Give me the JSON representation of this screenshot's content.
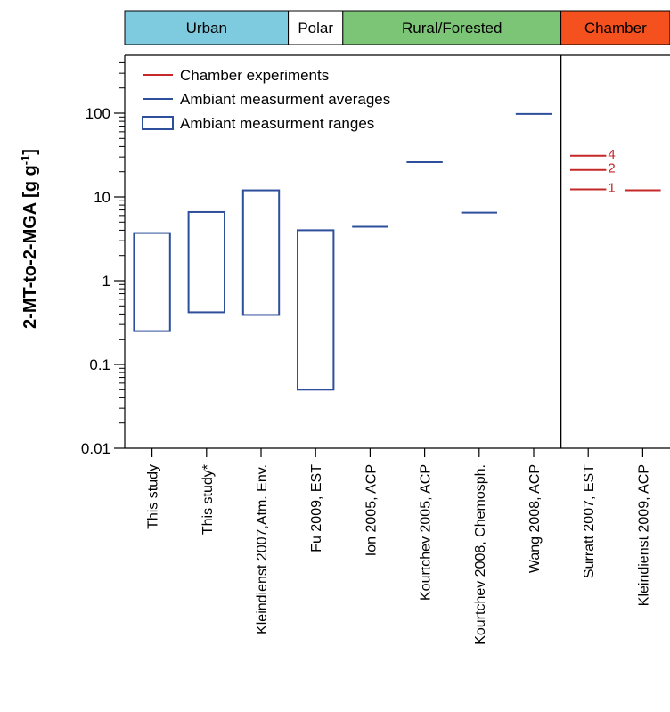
{
  "chart_data": {
    "type": "range",
    "ylabel": "2-MT-to-2-MGA [g g",
    "ylabel_sup": "-1",
    "ylabel_close": "]",
    "yscale": "log",
    "ylim": [
      0.01,
      500
    ],
    "yticks": [
      {
        "value": 0.01,
        "label": "0.01"
      },
      {
        "value": 0.1,
        "label": "0.1"
      },
      {
        "value": 1,
        "label": "1"
      },
      {
        "value": 10,
        "label": "10"
      },
      {
        "value": 100,
        "label": "100"
      }
    ],
    "categories": [
      "This study",
      "This study*",
      "Kleindienst 2007,Atm. Env.",
      "Fu 2009, EST",
      "Ion 2005, ACP",
      "Kourtchev 2005, ACP",
      "Kourtchev 2008, Chemosph.",
      "Wang 2008, ACP",
      "Surratt 2007, EST",
      "Kleindienst 2009, ACP"
    ],
    "environments": [
      {
        "label": "Urban",
        "color": "#7ecbdf",
        "from": 0,
        "to": 3
      },
      {
        "label": "Polar",
        "color": "#ffffff",
        "from": 3,
        "to": 4
      },
      {
        "label": "Rural/Forested",
        "color": "#7cc576",
        "from": 4,
        "to": 8
      },
      {
        "label": "Chamber",
        "color": "#f4511e",
        "from": 8,
        "to": 10
      }
    ],
    "legend": {
      "position": "top-left",
      "entries": [
        {
          "label": "Chamber experiments",
          "kind": "red-line"
        },
        {
          "label": "Ambiant measurment averages",
          "kind": "blue-line"
        },
        {
          "label": "Ambiant measurment ranges",
          "kind": "blue-box"
        }
      ]
    },
    "ranges": [
      {
        "category": 0,
        "low": 0.25,
        "high": 3.7
      },
      {
        "category": 1,
        "low": 0.42,
        "high": 6.6
      },
      {
        "category": 2,
        "low": 0.39,
        "high": 12
      },
      {
        "category": 3,
        "low": 0.05,
        "high": 4.0
      }
    ],
    "averages": [
      {
        "category": 4,
        "value": 4.4
      },
      {
        "category": 5,
        "value": 26
      },
      {
        "category": 6,
        "value": 6.5
      },
      {
        "category": 7,
        "value": 98
      }
    ],
    "chamber": [
      {
        "category": 8,
        "value": 31,
        "label": "4"
      },
      {
        "category": 8,
        "value": 21,
        "label": "2"
      },
      {
        "category": 8,
        "value": 12.3,
        "label": "1"
      },
      {
        "category": 9,
        "value": 12
      }
    ],
    "divider_after_category": 7,
    "grid": false
  },
  "colors": {
    "range": "#2e4f9b",
    "average": "#2e4f9b",
    "chamber": "#c62828",
    "axis": "#000000"
  }
}
